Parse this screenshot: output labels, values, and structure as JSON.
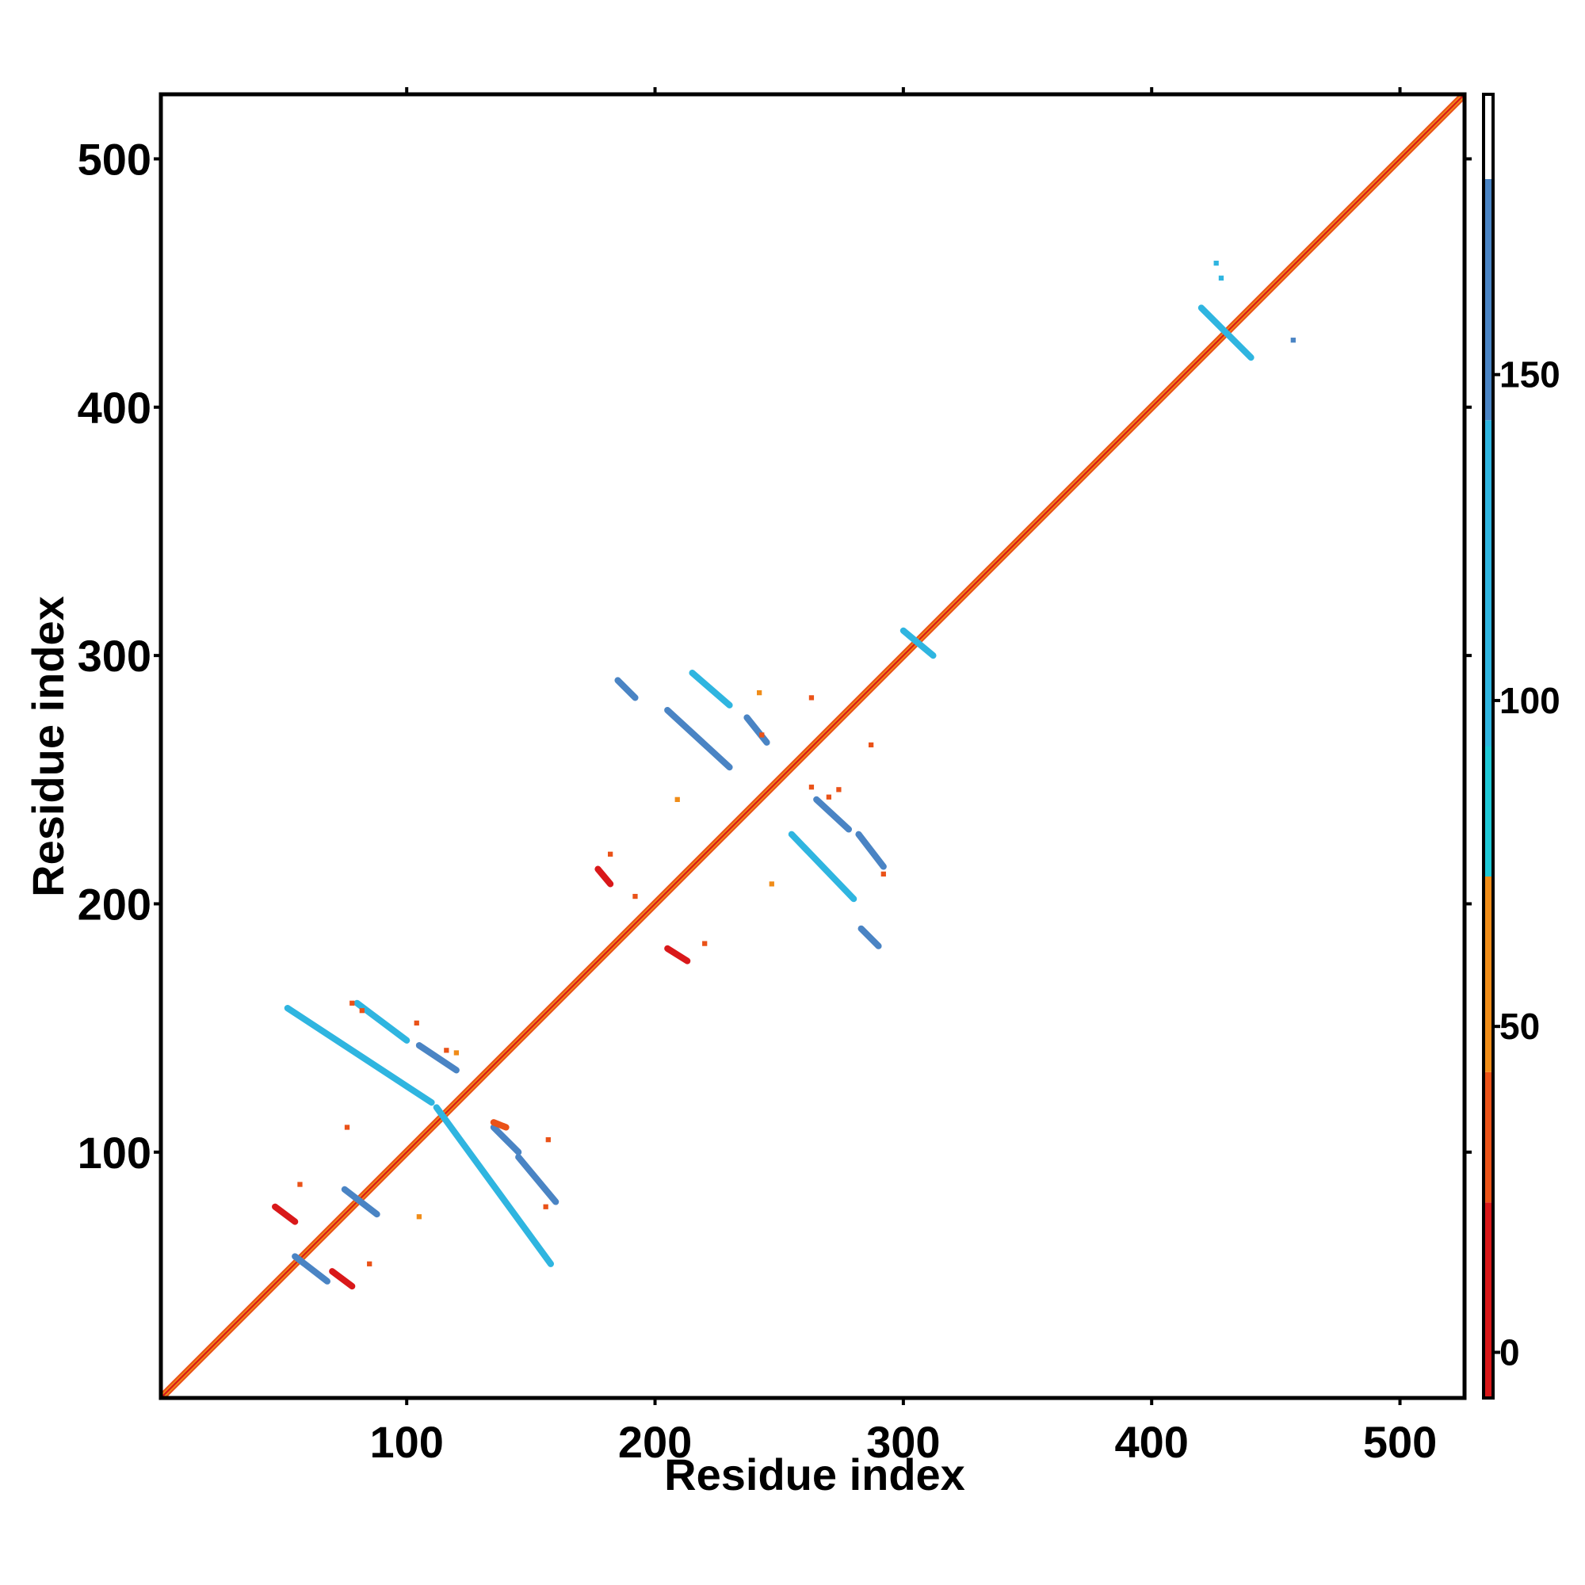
{
  "chart_data": {
    "type": "heatmap",
    "title": "",
    "xlabel": "Residue index",
    "ylabel": "Residue index",
    "xlim": [
      1,
      526
    ],
    "ylim": [
      1,
      526
    ],
    "x_ticks": [
      100,
      200,
      300,
      400,
      500
    ],
    "y_ticks": [
      100,
      200,
      300,
      400,
      500
    ],
    "x_tick_labels": [
      "100",
      "200",
      "300",
      "400",
      "500"
    ],
    "y_tick_labels": [
      "100",
      "200",
      "300",
      "400",
      "500"
    ],
    "grid": false,
    "colorbar": {
      "range": [
        -7,
        193
      ],
      "ticks": [
        0,
        50,
        100,
        150
      ],
      "tick_labels": [
        "0",
        "50",
        "100",
        "150"
      ],
      "bands": [
        {
          "from": -7,
          "to": 23,
          "color": "#d9181a"
        },
        {
          "from": 23,
          "to": 43,
          "color": "#ea5218"
        },
        {
          "from": 43,
          "to": 73,
          "color": "#f08c18"
        },
        {
          "from": 73,
          "to": 93,
          "color": "#1ec8d6"
        },
        {
          "from": 93,
          "to": 143,
          "color": "#2fb5e0"
        },
        {
          "from": 143,
          "to": 180,
          "color": "#4a84c4"
        },
        {
          "from": 180,
          "to": 193,
          "color": "#ffffff"
        }
      ]
    },
    "diagonal": {
      "from": 1,
      "to": 526
    },
    "segments": [
      {
        "x1": 52,
        "y1": 158,
        "x2": 110,
        "y2": 120,
        "value": 120
      },
      {
        "x1": 80,
        "y1": 160,
        "x2": 100,
        "y2": 145,
        "value": 120
      },
      {
        "x1": 105,
        "y1": 143,
        "x2": 120,
        "y2": 133,
        "value": 150
      },
      {
        "x1": 112,
        "y1": 118,
        "x2": 158,
        "y2": 55,
        "value": 130
      },
      {
        "x1": 135,
        "y1": 110,
        "x2": 145,
        "y2": 100,
        "value": 150
      },
      {
        "x1": 145,
        "y1": 98,
        "x2": 160,
        "y2": 80,
        "value": 150
      },
      {
        "x1": 55,
        "y1": 58,
        "x2": 68,
        "y2": 48,
        "value": 150
      },
      {
        "x1": 75,
        "y1": 85,
        "x2": 88,
        "y2": 75,
        "value": 150
      },
      {
        "x1": 185,
        "y1": 290,
        "x2": 192,
        "y2": 283,
        "value": 150
      },
      {
        "x1": 205,
        "y1": 278,
        "x2": 230,
        "y2": 255,
        "value": 150
      },
      {
        "x1": 215,
        "y1": 293,
        "x2": 230,
        "y2": 280,
        "value": 120
      },
      {
        "x1": 237,
        "y1": 275,
        "x2": 245,
        "y2": 265,
        "value": 150
      },
      {
        "x1": 255,
        "y1": 228,
        "x2": 280,
        "y2": 202,
        "value": 140
      },
      {
        "x1": 265,
        "y1": 242,
        "x2": 278,
        "y2": 230,
        "value": 150
      },
      {
        "x1": 282,
        "y1": 228,
        "x2": 292,
        "y2": 215,
        "value": 150
      },
      {
        "x1": 283,
        "y1": 190,
        "x2": 290,
        "y2": 183,
        "value": 150
      },
      {
        "x1": 300,
        "y1": 310,
        "x2": 312,
        "y2": 300,
        "value": 110
      },
      {
        "x1": 420,
        "y1": 440,
        "x2": 440,
        "y2": 420,
        "value": 120
      },
      {
        "x1": 47,
        "y1": 78,
        "x2": 55,
        "y2": 72,
        "value": 10
      },
      {
        "x1": 70,
        "y1": 52,
        "x2": 78,
        "y2": 46,
        "value": 10
      },
      {
        "x1": 177,
        "y1": 214,
        "x2": 182,
        "y2": 208,
        "value": 10
      },
      {
        "x1": 205,
        "y1": 182,
        "x2": 213,
        "y2": 177,
        "value": 10
      },
      {
        "x1": 135,
        "y1": 112,
        "x2": 140,
        "y2": 110,
        "value": 25
      }
    ],
    "points": [
      {
        "x": 426,
        "y": 458,
        "value": 120
      },
      {
        "x": 428,
        "y": 452,
        "value": 120
      },
      {
        "x": 457,
        "y": 427,
        "value": 150
      },
      {
        "x": 82,
        "y": 157,
        "value": 25
      },
      {
        "x": 78,
        "y": 160,
        "value": 25
      },
      {
        "x": 104,
        "y": 152,
        "value": 25
      },
      {
        "x": 116,
        "y": 141,
        "value": 40
      },
      {
        "x": 120,
        "y": 140,
        "value": 60
      },
      {
        "x": 76,
        "y": 110,
        "value": 40
      },
      {
        "x": 57,
        "y": 87,
        "value": 40
      },
      {
        "x": 156,
        "y": 78,
        "value": 25
      },
      {
        "x": 157,
        "y": 105,
        "value": 40
      },
      {
        "x": 105,
        "y": 74,
        "value": 60
      },
      {
        "x": 85,
        "y": 55,
        "value": 40
      },
      {
        "x": 182,
        "y": 220,
        "value": 25
      },
      {
        "x": 192,
        "y": 203,
        "value": 40
      },
      {
        "x": 220,
        "y": 184,
        "value": 25
      },
      {
        "x": 209,
        "y": 242,
        "value": 60
      },
      {
        "x": 242,
        "y": 285,
        "value": 60
      },
      {
        "x": 243,
        "y": 268,
        "value": 25
      },
      {
        "x": 263,
        "y": 283,
        "value": 40
      },
      {
        "x": 270,
        "y": 243,
        "value": 25
      },
      {
        "x": 274,
        "y": 246,
        "value": 25
      },
      {
        "x": 287,
        "y": 264,
        "value": 40
      },
      {
        "x": 292,
        "y": 212,
        "value": 25
      },
      {
        "x": 247,
        "y": 208,
        "value": 60
      },
      {
        "x": 263,
        "y": 247,
        "value": 40
      }
    ]
  }
}
